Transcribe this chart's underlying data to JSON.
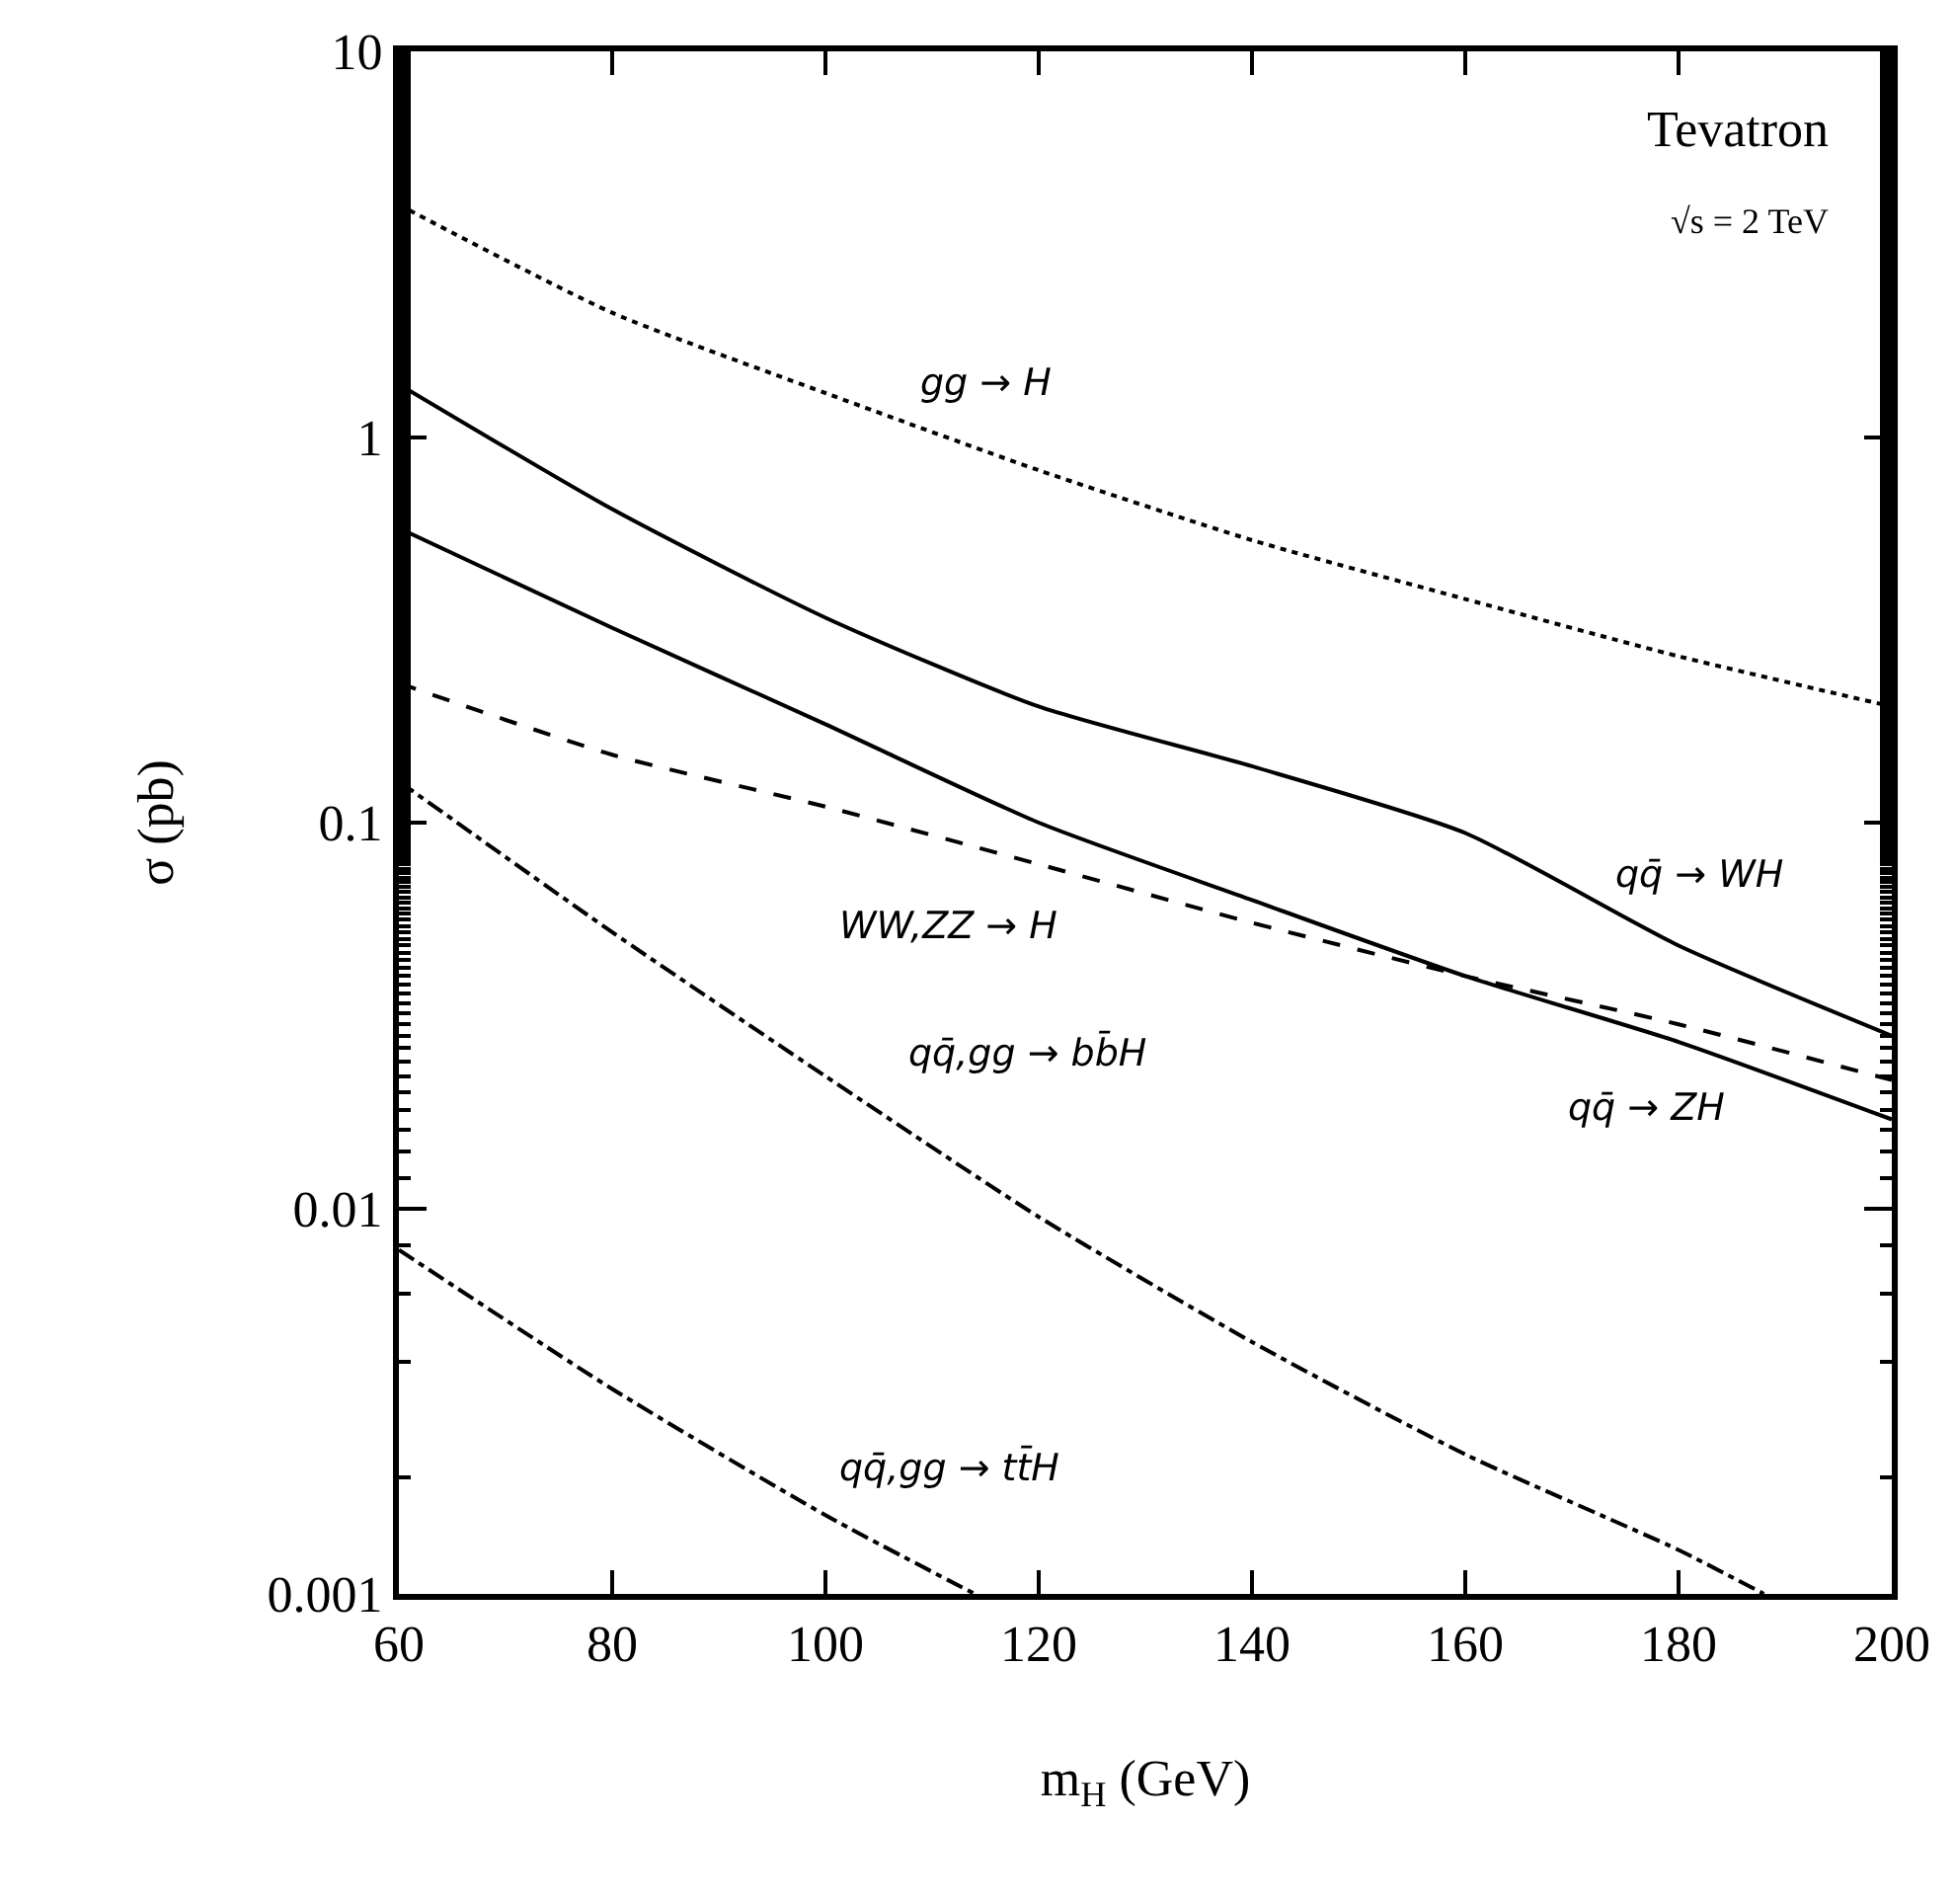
{
  "chart_data": {
    "type": "line",
    "xlabel": "m$_{H}$ (GeV)",
    "ylabel": "σ (pb)",
    "log": "y",
    "legend": false,
    "marker": "none",
    "xlim": [
      60,
      200
    ],
    "xticks": [
      60,
      80,
      100,
      120,
      140,
      160,
      180,
      200
    ],
    "ylim": [
      0.001,
      10
    ],
    "yticks": [
      0.001,
      0.01,
      0.1,
      1,
      10
    ],
    "series": [
      {
        "name": "gg → H",
        "color": "#000000",
        "line_style": "dotted",
        "x": [
          60,
          80,
          100,
          120,
          140,
          160,
          180,
          200
        ],
        "values": [
          4.0,
          2.1,
          1.3,
          0.82,
          0.54,
          0.38,
          0.27,
          0.2
        ]
      },
      {
        "name": "qq̄ → WH",
        "color": "#000000",
        "line_style": "solid",
        "x": [
          60,
          80,
          100,
          120,
          140,
          160,
          180,
          200
        ],
        "values": [
          1.37,
          0.65,
          0.34,
          0.2,
          0.14,
          0.094,
          0.048,
          0.028
        ]
      },
      {
        "name": "qq̄ → ZH",
        "color": "#000000",
        "line_style": "solid",
        "x": [
          60,
          80,
          100,
          120,
          140,
          160,
          180,
          200
        ],
        "values": [
          0.58,
          0.32,
          0.18,
          0.1,
          0.063,
          0.04,
          0.027,
          0.017
        ]
      },
      {
        "name": "WW,ZZ → H",
        "color": "#000000",
        "line_style": "dashed",
        "x": [
          60,
          80,
          100,
          120,
          140,
          160,
          180,
          200
        ],
        "values": [
          0.23,
          0.15,
          0.11,
          0.078,
          0.055,
          0.04,
          0.03,
          0.0215
        ]
      },
      {
        "name": "qq̄,gg → bb̄H",
        "color": "#000000",
        "line_style": "dashdot",
        "x": [
          60,
          80,
          100,
          120,
          140,
          160,
          180,
          188
        ],
        "values": [
          0.128,
          0.052,
          0.022,
          0.0095,
          0.0045,
          0.0023,
          0.0013,
          0.001
        ]
      },
      {
        "name": "qq̄,gg → tt̄H",
        "color": "#000000",
        "line_style": "dashdot",
        "x": [
          60,
          80,
          100,
          114
        ],
        "values": [
          0.0078,
          0.0034,
          0.0016,
          0.001
        ]
      }
    ],
    "annotations": [
      "Tevatron",
      "√s = 2 TeV"
    ]
  }
}
